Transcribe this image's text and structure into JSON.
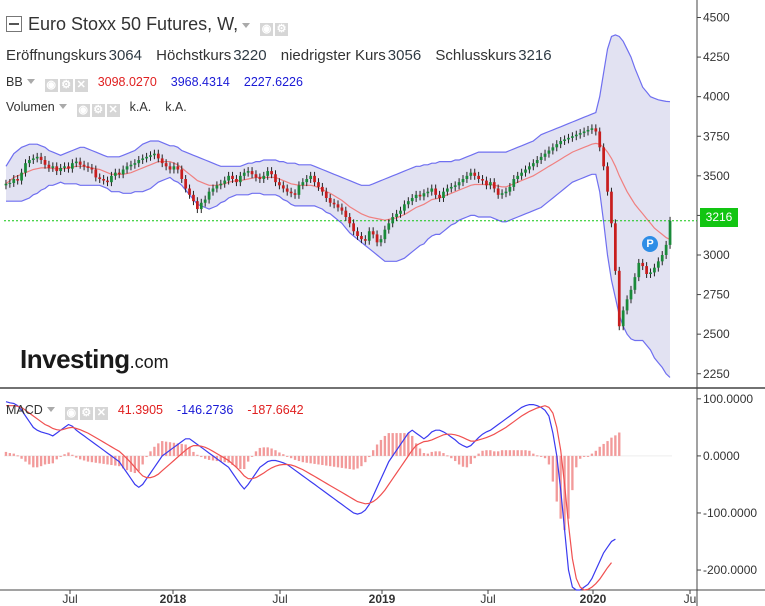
{
  "header": {
    "title": "Euro Stoxx 50 Futures, W,",
    "ohlc": [
      {
        "label": "Eröffnungskurs",
        "value": "3064"
      },
      {
        "label": "Höchstkurs",
        "value": "3220"
      },
      {
        "label": "niedrigster Kurs",
        "value": "3056"
      },
      {
        "label": "Schlusskurs",
        "value": "3216"
      }
    ]
  },
  "indicators": {
    "bb": {
      "name": "BB",
      "values": [
        "3098.0270",
        "3968.4314",
        "2227.6226"
      ]
    },
    "volume": {
      "name": "Volumen",
      "values": [
        "k.A.",
        "k.A."
      ]
    },
    "macd": {
      "name": "MACD",
      "values": [
        "41.3905",
        "-146.2736",
        "-187.6642"
      ]
    }
  },
  "logo": {
    "brand": "Investing",
    "suffix": ".com"
  },
  "price_tag": "3216",
  "marker": "P",
  "colors": {
    "up": "#1a8a3a",
    "down": "#c81e1e",
    "band_fill": "#e2e2f2",
    "band_line": "#6f6ff0",
    "mid_line": "#f08080",
    "last_price": "#12c512",
    "macd_line": "#3a3af0",
    "signal_line": "#f05050",
    "hist": "#f29a9a"
  },
  "chart_data": [
    {
      "type": "candlestick",
      "y_axis_ticks": [
        2250,
        2500,
        2750,
        3000,
        3250,
        3500,
        3750,
        4000,
        4250,
        4500
      ],
      "ylim": [
        2160,
        4560
      ],
      "x_tick_labels": [
        "Jul",
        "2018",
        "Jul",
        "2019",
        "Jul",
        "2020",
        "Ju"
      ],
      "last_price": 3216,
      "series_close": [
        3450,
        3455,
        3480,
        3470,
        3520,
        3580,
        3600,
        3610,
        3620,
        3600,
        3570,
        3550,
        3560,
        3530,
        3550,
        3560,
        3545,
        3580,
        3590,
        3570,
        3560,
        3550,
        3540,
        3490,
        3480,
        3470,
        3460,
        3500,
        3520,
        3510,
        3540,
        3560,
        3570,
        3580,
        3600,
        3610,
        3620,
        3630,
        3640,
        3610,
        3580,
        3560,
        3540,
        3560,
        3540,
        3480,
        3420,
        3380,
        3340,
        3290,
        3330,
        3350,
        3400,
        3420,
        3440,
        3450,
        3470,
        3500,
        3480,
        3460,
        3500,
        3520,
        3530,
        3510,
        3490,
        3480,
        3500,
        3530,
        3510,
        3460,
        3440,
        3420,
        3400,
        3390,
        3380,
        3440,
        3460,
        3480,
        3500,
        3460,
        3430,
        3400,
        3360,
        3330,
        3320,
        3300,
        3280,
        3240,
        3200,
        3150,
        3120,
        3100,
        3090,
        3150,
        3130,
        3080,
        3100,
        3160,
        3200,
        3240,
        3260,
        3280,
        3320,
        3340,
        3360,
        3380,
        3370,
        3390,
        3400,
        3420,
        3380,
        3360,
        3400,
        3420,
        3430,
        3440,
        3460,
        3480,
        3500,
        3520,
        3500,
        3480,
        3470,
        3440,
        3460,
        3420,
        3380,
        3390,
        3400,
        3430,
        3480,
        3500,
        3520,
        3540,
        3560,
        3580,
        3600,
        3620,
        3640,
        3660,
        3680,
        3700,
        3720,
        3730,
        3740,
        3750,
        3760,
        3770,
        3780,
        3790,
        3800,
        3780,
        3680,
        3560,
        3400,
        3200,
        2900,
        2550,
        2650,
        2720,
        2780,
        2860,
        2950,
        2930,
        2880,
        2890,
        2920,
        2960,
        3000,
        3064,
        3216
      ],
      "bb_upper": [
        3560,
        3600,
        3640,
        3660,
        3680,
        3690,
        3700,
        3700,
        3700,
        3690,
        3680,
        3660,
        3650,
        3640,
        3630,
        3640,
        3650,
        3660,
        3670,
        3680,
        3680,
        3670,
        3660,
        3650,
        3640,
        3630,
        3620,
        3620,
        3620,
        3620,
        3630,
        3640,
        3650,
        3660,
        3680,
        3700,
        3710,
        3720,
        3720,
        3720,
        3710,
        3700,
        3690,
        3690,
        3680,
        3660,
        3650,
        3640,
        3630,
        3620,
        3610,
        3600,
        3590,
        3580,
        3570,
        3560,
        3560,
        3560,
        3560,
        3560,
        3560,
        3570,
        3580,
        3580,
        3590,
        3590,
        3600,
        3600,
        3600,
        3600,
        3590,
        3590,
        3580,
        3580,
        3580,
        3570,
        3570,
        3570,
        3570,
        3560,
        3550,
        3540,
        3530,
        3520,
        3510,
        3500,
        3490,
        3480,
        3470,
        3460,
        3450,
        3440,
        3440,
        3440,
        3450,
        3460,
        3470,
        3480,
        3490,
        3500,
        3510,
        3520,
        3530,
        3540,
        3550,
        3560,
        3560,
        3570,
        3570,
        3580,
        3580,
        3590,
        3590,
        3590,
        3590,
        3600,
        3600,
        3610,
        3620,
        3630,
        3640,
        3650,
        3650,
        3650,
        3650,
        3650,
        3650,
        3650,
        3650,
        3660,
        3670,
        3680,
        3690,
        3700,
        3710,
        3720,
        3740,
        3760,
        3770,
        3780,
        3790,
        3800,
        3810,
        3820,
        3830,
        3840,
        3850,
        3860,
        3870,
        3880,
        3890,
        3900,
        4000,
        4150,
        4300,
        4380,
        4390,
        4380,
        4350,
        4300,
        4250,
        4180,
        4120,
        4060,
        4030,
        4000,
        3990,
        3980,
        3975,
        3970,
        3968
      ],
      "bb_middle": [
        3450,
        3470,
        3490,
        3500,
        3510,
        3520,
        3530,
        3540,
        3545,
        3550,
        3550,
        3550,
        3545,
        3545,
        3545,
        3545,
        3550,
        3555,
        3560,
        3560,
        3560,
        3555,
        3550,
        3545,
        3540,
        3530,
        3520,
        3510,
        3510,
        3510,
        3510,
        3515,
        3520,
        3530,
        3540,
        3550,
        3560,
        3570,
        3580,
        3590,
        3590,
        3590,
        3590,
        3580,
        3570,
        3550,
        3530,
        3510,
        3490,
        3470,
        3460,
        3450,
        3440,
        3440,
        3440,
        3445,
        3450,
        3460,
        3465,
        3470,
        3470,
        3475,
        3480,
        3485,
        3490,
        3490,
        3490,
        3490,
        3490,
        3490,
        3480,
        3470,
        3460,
        3450,
        3445,
        3440,
        3440,
        3440,
        3440,
        3435,
        3425,
        3415,
        3400,
        3390,
        3375,
        3360,
        3345,
        3325,
        3305,
        3290,
        3275,
        3260,
        3250,
        3240,
        3235,
        3230,
        3225,
        3220,
        3225,
        3230,
        3235,
        3245,
        3255,
        3270,
        3285,
        3300,
        3310,
        3320,
        3335,
        3350,
        3355,
        3360,
        3370,
        3380,
        3390,
        3400,
        3410,
        3420,
        3430,
        3440,
        3445,
        3445,
        3445,
        3445,
        3445,
        3440,
        3435,
        3430,
        3430,
        3440,
        3450,
        3460,
        3470,
        3480,
        3490,
        3500,
        3515,
        3530,
        3545,
        3560,
        3575,
        3590,
        3605,
        3620,
        3635,
        3650,
        3660,
        3670,
        3680,
        3690,
        3700,
        3705,
        3700,
        3680,
        3650,
        3610,
        3560,
        3500,
        3450,
        3400,
        3360,
        3320,
        3290,
        3260,
        3230,
        3200,
        3170,
        3150,
        3130,
        3110,
        3098
      ],
      "bb_lower": [
        3340,
        3340,
        3340,
        3340,
        3340,
        3350,
        3360,
        3380,
        3390,
        3410,
        3420,
        3440,
        3440,
        3450,
        3460,
        3450,
        3450,
        3450,
        3450,
        3440,
        3440,
        3440,
        3440,
        3440,
        3440,
        3430,
        3420,
        3400,
        3400,
        3400,
        3390,
        3390,
        3390,
        3400,
        3400,
        3400,
        3410,
        3420,
        3440,
        3460,
        3470,
        3480,
        3490,
        3470,
        3460,
        3440,
        3410,
        3380,
        3350,
        3320,
        3310,
        3300,
        3290,
        3300,
        3310,
        3330,
        3340,
        3360,
        3370,
        3380,
        3380,
        3380,
        3380,
        3390,
        3390,
        3390,
        3380,
        3380,
        3380,
        3380,
        3370,
        3350,
        3340,
        3320,
        3310,
        3310,
        3310,
        3310,
        3310,
        3310,
        3300,
        3290,
        3270,
        3260,
        3240,
        3220,
        3200,
        3170,
        3140,
        3120,
        3100,
        3080,
        3060,
        3040,
        3020,
        3000,
        2980,
        2960,
        2960,
        2960,
        2960,
        2970,
        2980,
        3000,
        3020,
        3040,
        3060,
        3070,
        3100,
        3120,
        3130,
        3130,
        3150,
        3170,
        3190,
        3200,
        3220,
        3230,
        3240,
        3250,
        3250,
        3240,
        3240,
        3240,
        3240,
        3230,
        3220,
        3210,
        3210,
        3220,
        3230,
        3240,
        3250,
        3260,
        3270,
        3280,
        3290,
        3300,
        3320,
        3340,
        3360,
        3380,
        3400,
        3420,
        3440,
        3460,
        3470,
        3480,
        3490,
        3500,
        3510,
        3510,
        3400,
        3210,
        3000,
        2840,
        2730,
        2620,
        2550,
        2500,
        2470,
        2460,
        2460,
        2460,
        2430,
        2400,
        2350,
        2320,
        2290,
        2250,
        2227
      ]
    },
    {
      "type": "macd",
      "y_axis_ticks": [
        100.0,
        0.0,
        -100.0,
        -200.0
      ],
      "y_tick_labels": [
        "100.0000",
        "0.0000",
        "-100.0000",
        "-200.0000"
      ],
      "ylim": [
        -235,
        112
      ],
      "macd": [
        95,
        93,
        92,
        88,
        80,
        70,
        60,
        50,
        45,
        42,
        40,
        38,
        35,
        40,
        45,
        50,
        55,
        52,
        45,
        40,
        35,
        30,
        25,
        20,
        15,
        10,
        5,
        0,
        -5,
        -10,
        -20,
        -30,
        -40,
        -50,
        -55,
        -50,
        -40,
        -30,
        -20,
        -10,
        0,
        5,
        10,
        15,
        20,
        25,
        30,
        30,
        25,
        20,
        15,
        10,
        5,
        0,
        -5,
        -10,
        -15,
        -20,
        -30,
        -40,
        -50,
        -58,
        -50,
        -40,
        -30,
        -20,
        -15,
        -10,
        -8,
        -8,
        -10,
        -12,
        -15,
        -20,
        -25,
        -30,
        -35,
        -40,
        -45,
        -50,
        -55,
        -60,
        -65,
        -70,
        -75,
        -80,
        -85,
        -90,
        -95,
        -100,
        -102,
        -100,
        -95,
        -85,
        -70,
        -55,
        -40,
        -25,
        -10,
        0,
        10,
        20,
        30,
        40,
        45,
        40,
        35,
        30,
        35,
        42,
        45,
        45,
        42,
        38,
        33,
        28,
        22,
        18,
        15,
        18,
        25,
        32,
        38,
        42,
        45,
        50,
        55,
        60,
        65,
        70,
        75,
        80,
        85,
        88,
        90,
        90,
        88,
        85,
        80,
        70,
        40,
        0,
        -60,
        -130,
        -200,
        -230,
        -235,
        -235,
        -230,
        -225,
        -215,
        -200,
        -185,
        -170,
        -160,
        -150,
        -146
      ],
      "signal": [
        88,
        88,
        88,
        87,
        85,
        80,
        75,
        70,
        65,
        60,
        55,
        52,
        48,
        46,
        45,
        47,
        49,
        50,
        48,
        46,
        43,
        40,
        36,
        32,
        28,
        24,
        20,
        16,
        12,
        8,
        2,
        -5,
        -12,
        -20,
        -28,
        -35,
        -38,
        -38,
        -36,
        -32,
        -26,
        -20,
        -14,
        -8,
        -2,
        4,
        10,
        15,
        18,
        18,
        17,
        15,
        12,
        8,
        4,
        0,
        -4,
        -8,
        -14,
        -20,
        -27,
        -35,
        -40,
        -40,
        -38,
        -34,
        -30,
        -25,
        -21,
        -18,
        -16,
        -15,
        -15,
        -16,
        -18,
        -21,
        -24,
        -28,
        -32,
        -36,
        -40,
        -44,
        -48,
        -52,
        -56,
        -60,
        -64,
        -68,
        -72,
        -76,
        -80,
        -82,
        -84,
        -83,
        -80,
        -75,
        -68,
        -60,
        -50,
        -40,
        -30,
        -20,
        -10,
        0,
        10,
        18,
        22,
        25,
        26,
        28,
        31,
        34,
        37,
        38,
        38,
        37,
        35,
        32,
        29,
        26,
        26,
        28,
        30,
        32,
        35,
        38,
        42,
        46,
        50,
        55,
        60,
        65,
        70,
        74,
        78,
        81,
        84,
        86,
        88,
        85,
        75,
        50,
        10,
        -50,
        -120,
        -180,
        -215,
        -230,
        -235,
        -234,
        -230,
        -224,
        -216,
        -206,
        -196,
        -187
      ],
      "hist": [
        7,
        5,
        4,
        1,
        -5,
        -10,
        -15,
        -20,
        -20,
        -18,
        -15,
        -14,
        -13,
        -6,
        0,
        3,
        6,
        2,
        -3,
        -6,
        -8,
        -10,
        -11,
        -12,
        -13,
        -14,
        -15,
        -16,
        -17,
        -18,
        -22,
        -25,
        -28,
        -30,
        -27,
        -15,
        -2,
        8,
        16,
        22,
        26,
        25,
        24,
        23,
        22,
        21,
        20,
        15,
        7,
        2,
        -2,
        -5,
        -7,
        -8,
        -9,
        -10,
        -11,
        -12,
        -16,
        -20,
        -23,
        -23,
        -10,
        0,
        8,
        14,
        15,
        15,
        13,
        10,
        6,
        3,
        0,
        -4,
        -7,
        -9,
        -11,
        -12,
        -13,
        -14,
        -15,
        -16,
        -17,
        -18,
        -19,
        -20,
        -21,
        -22,
        -23,
        -24,
        -22,
        -18,
        -11,
        -2,
        10,
        20,
        28,
        35,
        40,
        40,
        40,
        40,
        40,
        40,
        35,
        22,
        13,
        5,
        4,
        7,
        8,
        8,
        5,
        1,
        -4,
        -9,
        -15,
        -19,
        -20,
        -14,
        -4,
        4,
        9,
        10,
        10,
        8,
        8,
        10,
        10,
        10,
        10,
        10,
        10,
        10,
        9,
        4,
        1,
        -1,
        -4,
        -15,
        -45,
        -80,
        -110,
        -130,
        -110,
        -60,
        -20,
        -5,
        -1,
        0,
        4,
        9,
        16,
        21,
        26,
        32,
        36,
        41
      ]
    }
  ]
}
